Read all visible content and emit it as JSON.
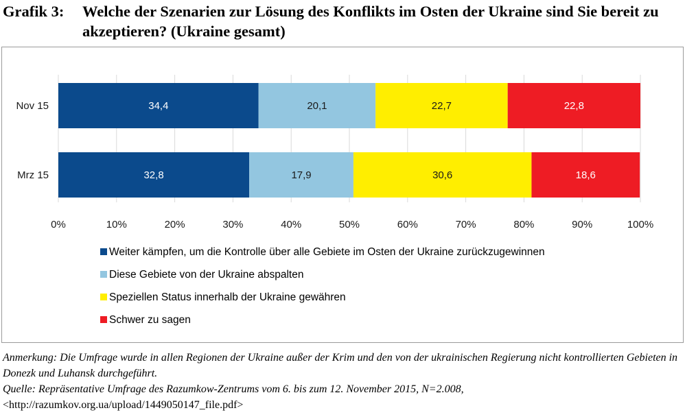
{
  "heading": {
    "label": "Grafik 3:",
    "text": "Welche der Szenarien zur Lösung des Konflikts im Osten der Ukraine sind Sie bereit zu akzeptieren?  (Ukraine gesamt)"
  },
  "chart_data": {
    "type": "bar",
    "orientation": "horizontal",
    "stacked": true,
    "categories": [
      "Nov 15",
      "Mrz 15"
    ],
    "series": [
      {
        "name": "Weiter kämpfen, um die Kontrolle über alle Gebiete im Osten der Ukraine zurückzugewinnen",
        "color": "#0b4a8c",
        "label_color": "#ffffff",
        "values": [
          34.4,
          32.8
        ],
        "labels": [
          "34,4",
          "32,8"
        ]
      },
      {
        "name": "Diese Gebiete von der Ukraine abspalten",
        "color": "#93c6e0",
        "label_color": "#1a1a1a",
        "values": [
          20.1,
          17.9
        ],
        "labels": [
          "20,1",
          "17,9"
        ]
      },
      {
        "name": "Speziellen Status innerhalb der Ukraine gewähren",
        "color": "#ffee00",
        "label_color": "#1a1a1a",
        "values": [
          22.7,
          30.6
        ],
        "labels": [
          "22,7",
          "30,6"
        ]
      },
      {
        "name": "Schwer zu sagen",
        "color": "#ee1c24",
        "label_color": "#ffffff",
        "values": [
          22.8,
          18.6
        ],
        "labels": [
          "22,8",
          "18,6"
        ]
      }
    ],
    "x_ticks": [
      "0%",
      "10%",
      "20%",
      "30%",
      "40%",
      "50%",
      "60%",
      "70%",
      "80%",
      "90%",
      "100%"
    ],
    "xlim": [
      0,
      100
    ],
    "grid": true,
    "legend_position": "bottom"
  },
  "notes": {
    "anmerkung": "Anmerkung: Die Umfrage wurde in allen Regionen der Ukraine außer der Krim und den von der ukrainischen Regierung nicht kontrollierten Gebieten in Donezk und Luhansk durchgeführt.",
    "quelle_prefix": "Quelle: Repräsentative Umfrage des Razumkow-Zentrums vom 6. bis zum 12. November 2015, N=2.008, ",
    "quelle_link": "<http://razumkov.org.ua/upload/1449050147_file.pdf>"
  }
}
